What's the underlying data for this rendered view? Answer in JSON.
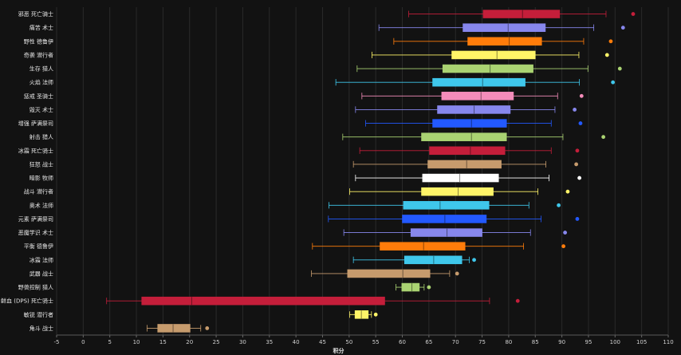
{
  "chart_data": {
    "type": "boxplot",
    "orientation": "horizontal",
    "xlabel": "积分",
    "xlim": [
      -5,
      110
    ],
    "xticks": [
      -5,
      0,
      5,
      10,
      15,
      20,
      25,
      30,
      35,
      40,
      45,
      50,
      55,
      60,
      65,
      70,
      75,
      80,
      85,
      90,
      95,
      100,
      105,
      110
    ],
    "grid": true,
    "categories": [
      {
        "label": "邪恶 死亡骑士",
        "color": "#c41e3a",
        "whisker_low": 61.2,
        "q1": 75.2,
        "median": 82.6,
        "q3": 89.6,
        "whisker_high": 98.3,
        "outliers": [
          103.4
        ]
      },
      {
        "label": "痛苦 术士",
        "color": "#8787ed",
        "whisker_low": 55.6,
        "q1": 71.4,
        "median": 79.9,
        "q3": 86.9,
        "whisker_high": 96.0,
        "outliers": [
          101.5
        ]
      },
      {
        "label": "野性 德鲁伊",
        "color": "#ff7c0a",
        "whisker_low": 58.4,
        "q1": 72.3,
        "median": 80.1,
        "q3": 86.2,
        "whisker_high": 94.1,
        "outliers": [
          99.2
        ]
      },
      {
        "label": "奇袭 潜行者",
        "color": "#fff468",
        "whisker_low": 54.3,
        "q1": 69.3,
        "median": 77.8,
        "q3": 85.0,
        "whisker_high": 93.2,
        "outliers": [
          98.5
        ]
      },
      {
        "label": "生存 猎人",
        "color": "#aad372",
        "whisker_low": 51.5,
        "q1": 67.6,
        "median": 76.5,
        "q3": 84.6,
        "whisker_high": 94.9,
        "outliers": [
          100.9
        ]
      },
      {
        "label": "火焰 法师",
        "color": "#3fc7eb",
        "whisker_low": 47.5,
        "q1": 65.7,
        "median": 75.1,
        "q3": 83.1,
        "whisker_high": 93.3,
        "outliers": [
          99.6
        ]
      },
      {
        "label": "惩戒 圣骑士",
        "color": "#f48cba",
        "whisker_low": 52.4,
        "q1": 67.4,
        "median": 74.8,
        "q3": 80.9,
        "whisker_high": 89.2,
        "outliers": [
          93.7
        ]
      },
      {
        "label": "毁灭 术士",
        "color": "#8787ed",
        "whisker_low": 51.2,
        "q1": 66.6,
        "median": 73.5,
        "q3": 80.3,
        "whisker_high": 88.7,
        "outliers": [
          92.4
        ]
      },
      {
        "label": "增强 萨满祭司",
        "color": "#2359ff",
        "whisker_low": 53.1,
        "q1": 65.7,
        "median": 73.0,
        "q3": 79.6,
        "whisker_high": 88.0,
        "outliers": [
          93.5
        ]
      },
      {
        "label": "射击 猎人",
        "color": "#aad372",
        "whisker_low": 48.8,
        "q1": 63.6,
        "median": 73.0,
        "q3": 79.6,
        "whisker_high": 90.2,
        "outliers": [
          97.8
        ]
      },
      {
        "label": "冰霜 死亡骑士",
        "color": "#c41e3a",
        "whisker_low": 52.0,
        "q1": 65.1,
        "median": 72.8,
        "q3": 79.3,
        "whisker_high": 88.0,
        "outliers": [
          92.9
        ]
      },
      {
        "label": "狂怒 战士",
        "color": "#c69b6d",
        "whisker_low": 50.8,
        "q1": 64.8,
        "median": 72.1,
        "q3": 78.6,
        "whisker_high": 87.0,
        "outliers": [
          92.7
        ]
      },
      {
        "label": "暗影 牧师",
        "color": "#ffffff",
        "whisker_low": 51.2,
        "q1": 63.8,
        "median": 70.8,
        "q3": 78.1,
        "whisker_high": 87.6,
        "outliers": [
          93.3
        ]
      },
      {
        "label": "战斗 潜行者",
        "color": "#fff468",
        "whisker_low": 50.1,
        "q1": 63.6,
        "median": 70.5,
        "q3": 77.1,
        "whisker_high": 85.5,
        "outliers": [
          91.1
        ]
      },
      {
        "label": "奥术 法师",
        "color": "#3fc7eb",
        "whisker_low": 46.2,
        "q1": 60.2,
        "median": 67.1,
        "q3": 76.3,
        "whisker_high": 83.8,
        "outliers": [
          89.4
        ]
      },
      {
        "label": "元素 萨满祭司",
        "color": "#2359ff",
        "whisker_low": 46.1,
        "q1": 60.0,
        "median": 68.0,
        "q3": 75.8,
        "whisker_high": 86.1,
        "outliers": [
          92.9
        ]
      },
      {
        "label": "恶魔学识 术士",
        "color": "#8787ed",
        "whisker_low": 49.0,
        "q1": 61.6,
        "median": 68.4,
        "q3": 75.0,
        "whisker_high": 84.1,
        "outliers": [
          90.6
        ]
      },
      {
        "label": "平衡 德鲁伊",
        "color": "#ff7c0a",
        "whisker_low": 43.1,
        "q1": 55.8,
        "median": 64.0,
        "q3": 71.8,
        "whisker_high": 82.8,
        "outliers": [
          90.3
        ]
      },
      {
        "label": "冰霜 法师",
        "color": "#3fc7eb",
        "whisker_low": 50.8,
        "q1": 60.4,
        "median": 65.9,
        "q3": 71.2,
        "whisker_high": 72.6,
        "outliers": [
          73.5
        ]
      },
      {
        "label": "武器 战士",
        "color": "#c69b6d",
        "whisker_low": 42.9,
        "q1": 49.7,
        "median": 60.1,
        "q3": 65.2,
        "whisker_high": 68.9,
        "outliers": [
          70.3
        ]
      },
      {
        "label": "野兽控制 猎人",
        "color": "#aad372",
        "whisker_low": 58.8,
        "q1": 59.9,
        "median": 61.8,
        "q3": 63.2,
        "whisker_high": 64.1,
        "outliers": [
          65.0
        ]
      },
      {
        "label": "鲜血 (DPS) 死亡骑士",
        "color": "#c41e3a",
        "whisker_low": 4.4,
        "q1": 11.0,
        "median": 20.4,
        "q3": 56.7,
        "whisker_high": 76.4,
        "outliers": [
          81.7
        ]
      },
      {
        "label": "敏锐 潜行者",
        "color": "#fff468",
        "whisker_low": 50.1,
        "q1": 51.1,
        "median": 52.3,
        "q3": 53.6,
        "whisker_high": 54.2,
        "outliers": [
          55.0
        ]
      },
      {
        "label": "角斗 战士",
        "color": "#c69b6d",
        "whisker_low": 12.0,
        "q1": 14.0,
        "median": 16.9,
        "q3": 20.1,
        "whisker_high": 22.1,
        "outliers": [
          23.3
        ]
      }
    ]
  }
}
